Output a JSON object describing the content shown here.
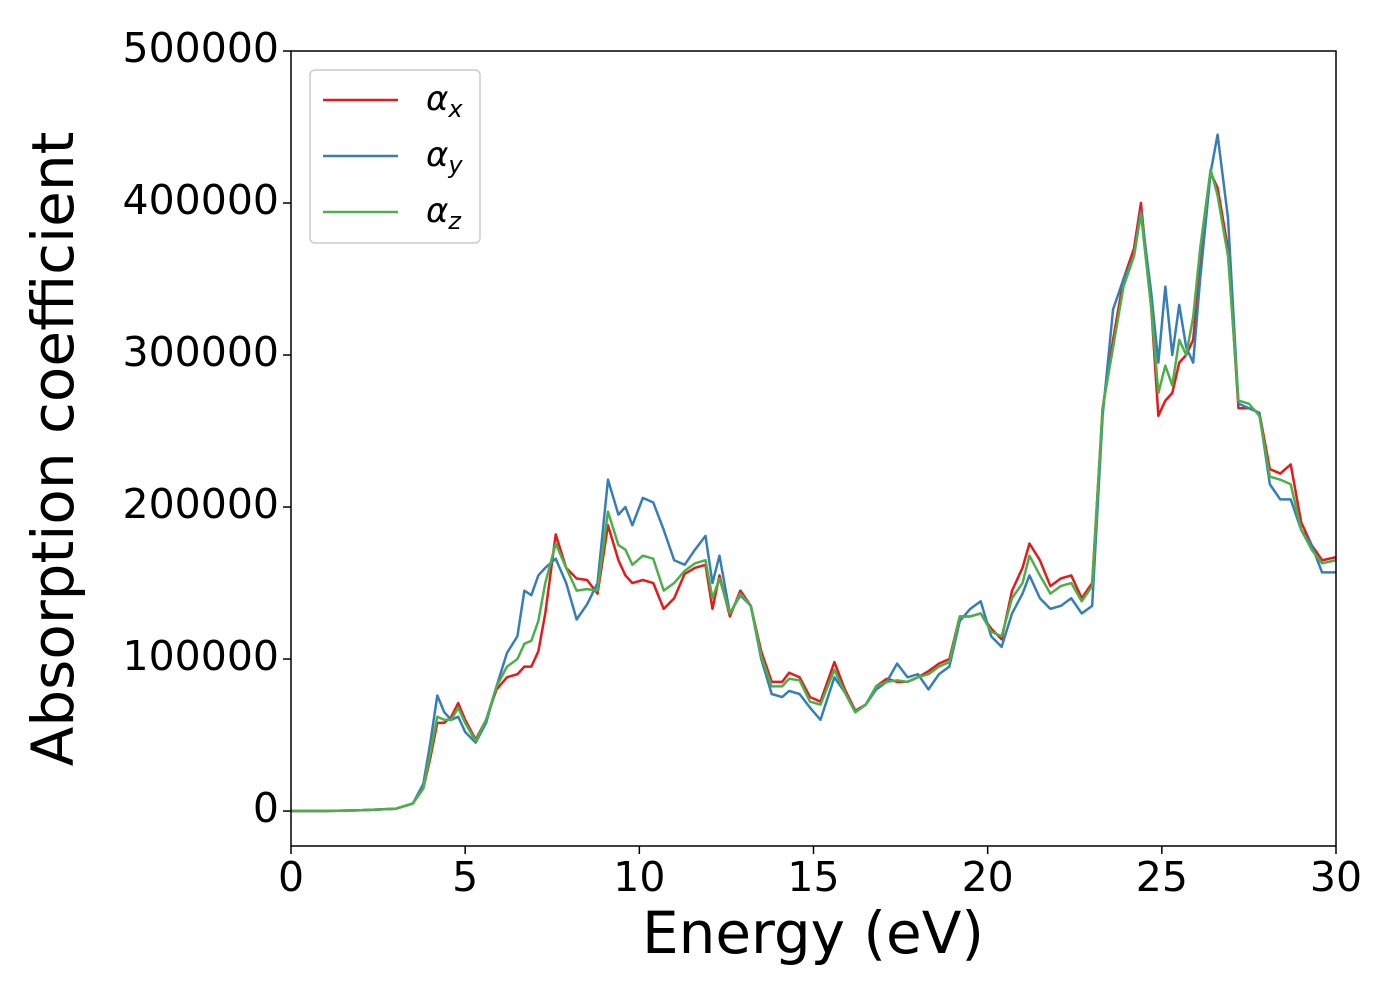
{
  "chart_data": {
    "type": "line",
    "xlabel": "Energy (eV)",
    "ylabel": "Absorption coefficient",
    "x": [
      0,
      1,
      2,
      3,
      3.5,
      3.8,
      4.0,
      4.2,
      4.4,
      4.6,
      4.8,
      5.0,
      5.3,
      5.6,
      5.9,
      6.2,
      6.5,
      6.7,
      6.9,
      7.1,
      7.3,
      7.6,
      7.9,
      8.2,
      8.5,
      8.8,
      9.1,
      9.4,
      9.6,
      9.8,
      10.1,
      10.4,
      10.7,
      11.0,
      11.3,
      11.6,
      11.9,
      12.1,
      12.3,
      12.6,
      12.9,
      13.2,
      13.5,
      13.8,
      14.1,
      14.3,
      14.6,
      14.9,
      15.2,
      15.6,
      15.9,
      16.2,
      16.5,
      16.8,
      17.1,
      17.4,
      17.7,
      18.0,
      18.3,
      18.6,
      18.9,
      19.2,
      19.5,
      19.8,
      20.1,
      20.4,
      20.7,
      21.0,
      21.2,
      21.5,
      21.8,
      22.1,
      22.4,
      22.7,
      23.0,
      23.3,
      23.6,
      23.9,
      24.2,
      24.4,
      24.7,
      24.9,
      25.1,
      25.3,
      25.5,
      25.7,
      25.9,
      26.1,
      26.4,
      26.6,
      26.9,
      27.2,
      27.5,
      27.8,
      28.1,
      28.4,
      28.7,
      29.0,
      29.3,
      29.6,
      30.0
    ],
    "series": [
      {
        "name": "αx",
        "color": "#e41a1c",
        "values": [
          0,
          0,
          500,
          1500,
          5000,
          15000,
          35000,
          58000,
          58000,
          62000,
          71000,
          60000,
          47000,
          60000,
          80000,
          88000,
          90000,
          95000,
          95000,
          105000,
          130000,
          182000,
          160000,
          153000,
          152000,
          143000,
          188000,
          165000,
          155000,
          150000,
          152000,
          150000,
          133000,
          140000,
          156000,
          160000,
          162000,
          133000,
          155000,
          128000,
          145000,
          135000,
          105000,
          85000,
          85000,
          91000,
          88000,
          75000,
          72000,
          98000,
          80000,
          66000,
          70000,
          82000,
          87000,
          85000,
          85000,
          88000,
          92000,
          97000,
          100000,
          128000,
          128000,
          130000,
          120000,
          113000,
          145000,
          160000,
          176000,
          165000,
          148000,
          153000,
          155000,
          140000,
          150000,
          265000,
          310000,
          350000,
          370000,
          400000,
          330000,
          260000,
          270000,
          275000,
          295000,
          300000,
          310000,
          360000,
          420000,
          410000,
          370000,
          265000,
          265000,
          262000,
          225000,
          222000,
          228000,
          190000,
          175000,
          165000,
          167000
        ]
      },
      {
        "name": "αy",
        "color": "#377eb8",
        "values": [
          0,
          0,
          500,
          1500,
          5000,
          18000,
          45000,
          76000,
          65000,
          60000,
          62000,
          52000,
          45000,
          58000,
          82000,
          104000,
          115000,
          145000,
          142000,
          155000,
          160000,
          166000,
          150000,
          126000,
          136000,
          150000,
          218000,
          195000,
          200000,
          188000,
          206000,
          203000,
          185000,
          165000,
          162000,
          172000,
          181000,
          150000,
          168000,
          130000,
          142000,
          135000,
          100000,
          77000,
          75000,
          79000,
          77000,
          68000,
          60000,
          88000,
          78000,
          65000,
          70000,
          80000,
          85000,
          97000,
          88000,
          90000,
          80000,
          90000,
          95000,
          125000,
          133000,
          138000,
          115000,
          108000,
          130000,
          143000,
          155000,
          140000,
          133000,
          135000,
          140000,
          130000,
          135000,
          260000,
          330000,
          350000,
          365000,
          395000,
          340000,
          295000,
          345000,
          300000,
          333000,
          305000,
          295000,
          350000,
          420000,
          445000,
          390000,
          268000,
          265000,
          262000,
          215000,
          205000,
          205000,
          185000,
          175000,
          157000,
          157000
        ]
      },
      {
        "name": "αz",
        "color": "#4daf4a",
        "values": [
          0,
          0,
          500,
          1500,
          5000,
          15000,
          38000,
          62000,
          60000,
          60000,
          68000,
          58000,
          46000,
          60000,
          82000,
          95000,
          100000,
          110000,
          112000,
          125000,
          150000,
          176000,
          160000,
          145000,
          146000,
          145000,
          197000,
          175000,
          172000,
          162000,
          168000,
          166000,
          145000,
          150000,
          158000,
          163000,
          165000,
          140000,
          153000,
          130000,
          143000,
          135000,
          102000,
          82000,
          82000,
          87000,
          86000,
          72000,
          70000,
          93000,
          78000,
          65000,
          70000,
          82000,
          85000,
          86000,
          85000,
          88000,
          90000,
          95000,
          98000,
          128000,
          128000,
          130000,
          118000,
          115000,
          140000,
          150000,
          168000,
          155000,
          143000,
          148000,
          150000,
          138000,
          148000,
          265000,
          305000,
          345000,
          365000,
          393000,
          330000,
          275000,
          293000,
          280000,
          310000,
          300000,
          325000,
          370000,
          422000,
          405000,
          365000,
          270000,
          268000,
          260000,
          220000,
          218000,
          215000,
          185000,
          172000,
          163000,
          165000
        ]
      }
    ],
    "xlim": [
      0,
      30
    ],
    "xticks": [
      0,
      5,
      10,
      15,
      20,
      25,
      30
    ],
    "ylim": [
      -23000,
      500000
    ],
    "yticks": [
      0,
      100000,
      200000,
      300000,
      400000,
      500000
    ],
    "legend": "upper left"
  }
}
